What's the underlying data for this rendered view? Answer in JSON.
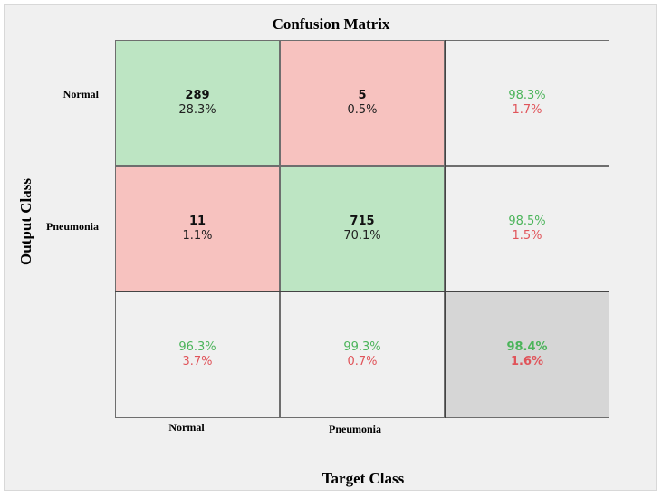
{
  "chart_data": {
    "type": "heatmap",
    "title": "Confusion Matrix",
    "xlabel": "Target Class",
    "ylabel": "Output Class",
    "row_labels": [
      "Normal",
      "Pneumonia"
    ],
    "col_labels": [
      "Normal",
      "Pneumonia"
    ],
    "matrix": [
      [
        {
          "count": "289",
          "percent": "28.3%"
        },
        {
          "count": "5",
          "percent": "0.5%"
        }
      ],
      [
        {
          "count": "11",
          "percent": "1.1%"
        },
        {
          "count": "715",
          "percent": "70.1%"
        }
      ]
    ],
    "row_summary": [
      {
        "correct": "98.3%",
        "error": "1.7%"
      },
      {
        "correct": "98.5%",
        "error": "1.5%"
      }
    ],
    "col_summary": [
      {
        "correct": "96.3%",
        "error": "3.7%"
      },
      {
        "correct": "99.3%",
        "error": "0.7%"
      }
    ],
    "overall": {
      "correct": "98.4%",
      "error": "1.6%"
    },
    "colors": {
      "correct_cell": "#bde5c3",
      "error_cell": "#f7c2bf",
      "summary_cell": "#f0f0f0",
      "overall_cell": "#d6d6d6",
      "correct_text": "#4bb45a",
      "error_text": "#e0545a"
    }
  }
}
